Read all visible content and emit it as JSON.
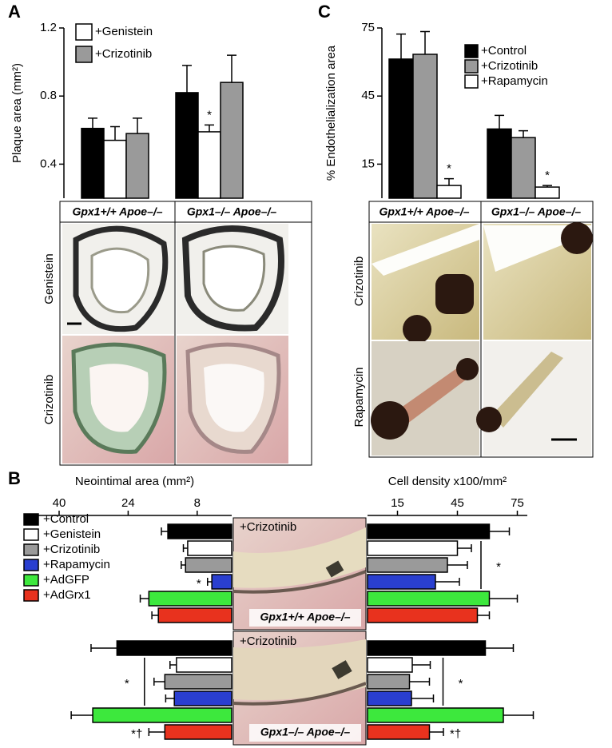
{
  "chart_data": [
    {
      "type": "bar",
      "panel": "A",
      "ylabel": "Plaque area (mm²)",
      "ylim": [
        0.2,
        1.2
      ],
      "yticks": [
        0.4,
        0.8,
        1.2
      ],
      "categories": [
        "Gpx1+/+ Apoe–/–",
        "Gpx1–/– Apoe–/–"
      ],
      "series": [
        {
          "color": "#000000",
          "values": [
            0.61,
            0.82
          ],
          "errors": [
            0.06,
            0.16
          ]
        },
        {
          "name": "+Genistein",
          "color": "#ffffff",
          "values": [
            0.54,
            0.59
          ],
          "errors": [
            0.08,
            0.04
          ]
        },
        {
          "name": "+Crizotinib",
          "color": "#9a9a9a",
          "values": [
            0.58,
            0.88
          ],
          "errors": [
            0.09,
            0.16
          ]
        }
      ],
      "annotations": [
        {
          "text": "*",
          "series": 1,
          "index": 1
        }
      ],
      "image_row_labels": [
        "Genistein",
        "Crizotinib"
      ]
    },
    {
      "type": "bar",
      "panel": "C",
      "ylabel": "% Endothelialization area",
      "ylim": [
        0,
        75
      ],
      "yticks": [
        15,
        45,
        75
      ],
      "categories": [
        "Gpx1+/+ Apoe–/–",
        "Gpx1–/– Apoe–/–"
      ],
      "series": [
        {
          "name": "+Control",
          "color": "#000000",
          "values": [
            61.3,
            30.5
          ],
          "errors": [
            11,
            6
          ]
        },
        {
          "name": "+Crizotinib",
          "color": "#9a9a9a",
          "values": [
            63.4,
            26.7
          ],
          "errors": [
            10,
            3
          ]
        },
        {
          "name": "+Rapamycin",
          "color": "#ffffff",
          "values": [
            5.6,
            4.9
          ],
          "errors": [
            3,
            0.7
          ]
        }
      ],
      "annotations": [
        {
          "text": "*",
          "series": 2,
          "index": 0
        },
        {
          "text": "*",
          "series": 2,
          "index": 1
        }
      ],
      "image_row_labels": [
        "Crizotinib",
        "Rapamycin"
      ]
    },
    {
      "type": "butterfly",
      "panel": "B",
      "categories": [
        "Gpx1+/+ Apoe–/–",
        "Gpx1–/– Apoe–/–"
      ],
      "image_labels": [
        "+Crizotinib",
        "+Crizotinib"
      ],
      "left": {
        "xlabel": "Neointimal area (mm²)",
        "xlim": [
          0,
          45
        ],
        "xticks": [
          40,
          24,
          8
        ],
        "series": [
          {
            "name": "+Control",
            "color": "#000000",
            "values": [
              14.8,
              26.6
            ],
            "errors": [
              1.5,
              6
            ]
          },
          {
            "name": "+Genistein",
            "color": "#ffffff",
            "values": [
              10.2,
              12.8
            ],
            "errors": [
              1,
              1.5
            ]
          },
          {
            "name": "+Crizotinib",
            "color": "#9a9a9a",
            "values": [
              10.7,
              15.5
            ],
            "errors": [
              1,
              2.5
            ]
          },
          {
            "name": "+Rapamycin",
            "color": "#2a3fd0",
            "values": [
              4.6,
              13.3
            ],
            "errors": [
              1,
              2
            ]
          },
          {
            "name": "+AdGFP",
            "color": "#3de83d",
            "values": [
              19.2,
              32.2
            ],
            "errors": [
              2,
              5
            ]
          },
          {
            "name": "+AdGrx1",
            "color": "#e8321e",
            "values": [
              17,
              15.5
            ],
            "errors": [
              1.5,
              3.7
            ]
          }
        ],
        "annotations": [
          {
            "text": "*",
            "group": 0,
            "series": 3
          },
          {
            "text": "*",
            "group": 1,
            "bracket": [
              1,
              3
            ]
          },
          {
            "text": "*†",
            "group": 1,
            "series": 5
          }
        ]
      },
      "right": {
        "xlabel": "Cell density x100/mm²",
        "xlim": [
          0,
          80
        ],
        "xticks": [
          15,
          45,
          75
        ],
        "series": [
          {
            "values": [
              61,
              59
            ],
            "errors": [
              10,
              14
            ]
          },
          {
            "values": [
              45,
              22.4
            ],
            "errors": [
              7,
              9
            ]
          },
          {
            "values": [
              40,
              21
            ],
            "errors": [
              10,
              10
            ]
          },
          {
            "values": [
              34,
              22
            ],
            "errors": [
              12,
              11
            ]
          },
          {
            "values": [
              61,
              68
            ],
            "errors": [
              14,
              15
            ]
          },
          {
            "values": [
              55,
              31
            ],
            "errors": [
              6,
              7
            ]
          }
        ],
        "annotations": [
          {
            "text": "*",
            "group": 0,
            "bracket": [
              1,
              3
            ]
          },
          {
            "text": "*",
            "group": 1,
            "bracket": [
              1,
              3
            ]
          },
          {
            "text": "*†",
            "group": 1,
            "series": 5
          }
        ]
      }
    }
  ]
}
